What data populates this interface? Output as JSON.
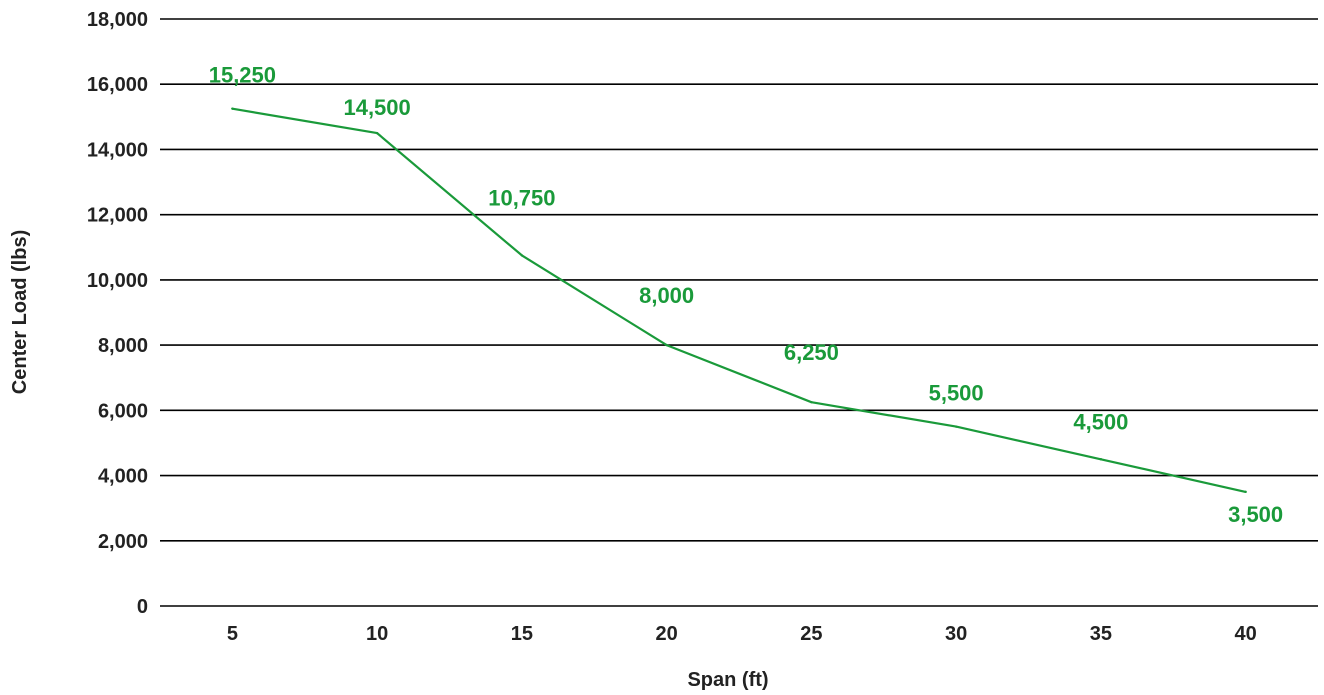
{
  "chart_data": {
    "type": "line",
    "title": "",
    "xlabel": "Span (ft)",
    "ylabel": "Center Load (lbs)",
    "x": [
      5,
      10,
      15,
      20,
      25,
      30,
      35,
      40
    ],
    "series": [
      {
        "values": [
          15250,
          14500,
          10750,
          8000,
          6250,
          5500,
          4500,
          3500
        ],
        "data_labels": [
          "15,250",
          "14,500",
          "10,750",
          "8,000",
          "6,250",
          "5,500",
          "4,500",
          "3,500"
        ],
        "color": "#1a9a3a"
      }
    ],
    "x_tick_labels": [
      "5",
      "10",
      "15",
      "20",
      "25",
      "30",
      "35",
      "40"
    ],
    "y_ticks": [
      0,
      2000,
      4000,
      6000,
      8000,
      10000,
      12000,
      14000,
      16000,
      18000
    ],
    "y_tick_labels": [
      "0",
      "2,000",
      "4,000",
      "6,000",
      "8,000",
      "10,000",
      "12,000",
      "14,000",
      "16,000",
      "18,000"
    ],
    "ylim": [
      0,
      18000
    ],
    "grid": "horizontal",
    "legend": "none",
    "gridline_color": "#000000"
  }
}
